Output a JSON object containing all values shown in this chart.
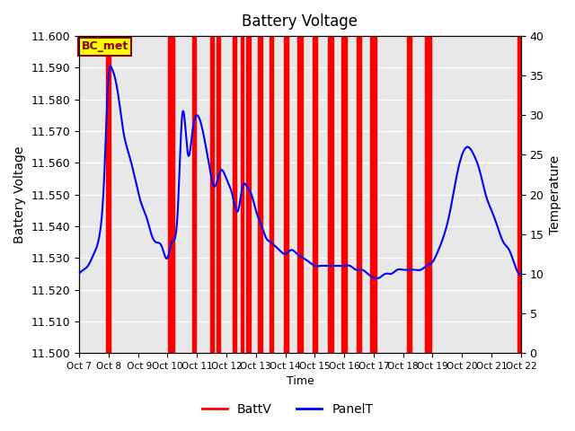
{
  "title": "Battery Voltage",
  "xlabel": "Time",
  "ylabel_left": "Battery Voltage",
  "ylabel_right": "Temperature",
  "ylim_left": [
    11.5,
    11.6
  ],
  "ylim_right": [
    0,
    40
  ],
  "xlim": [
    0,
    15
  ],
  "x_tick_labels": [
    "Oct 7",
    "Oct 8",
    " Oct 9",
    "Oct 10",
    "Oct 11",
    "Oct 12",
    "Oct 13",
    "Oct 14",
    "Oct 15",
    "Oct 16",
    "Oct 17",
    "Oct 18",
    "Oct 19",
    "Oct 20",
    "Oct 21",
    "Oct 22"
  ],
  "background_color": "#e8e8e8",
  "figure_background": "#ffffff",
  "annotation_text": "BC_met",
  "annotation_bg": "#ffff00",
  "annotation_border": "#8b0000",
  "red_spans": [
    [
      0.92,
      1.08
    ],
    [
      3.02,
      3.22
    ],
    [
      3.85,
      3.97
    ],
    [
      4.45,
      4.58
    ],
    [
      4.68,
      4.8
    ],
    [
      5.22,
      5.35
    ],
    [
      5.48,
      5.58
    ],
    [
      5.68,
      5.82
    ],
    [
      6.08,
      6.22
    ],
    [
      6.45,
      6.58
    ],
    [
      6.95,
      7.12
    ],
    [
      7.42,
      7.58
    ],
    [
      7.92,
      8.08
    ],
    [
      8.45,
      8.62
    ],
    [
      8.92,
      9.08
    ],
    [
      9.42,
      9.58
    ],
    [
      9.88,
      10.08
    ],
    [
      11.12,
      11.28
    ],
    [
      11.75,
      11.95
    ],
    [
      14.88,
      15.0
    ]
  ],
  "panel_t_x": [
    0.0,
    0.15,
    0.3,
    0.5,
    0.7,
    0.85,
    1.0,
    1.1,
    1.2,
    1.35,
    1.5,
    1.7,
    1.9,
    2.1,
    2.3,
    2.45,
    2.6,
    2.8,
    3.0,
    3.15,
    3.35,
    3.5,
    3.7,
    3.85,
    4.0,
    4.2,
    4.4,
    4.6,
    4.8,
    5.0,
    5.2,
    5.4,
    5.55,
    5.7,
    5.85,
    6.0,
    6.2,
    6.35,
    6.5,
    6.65,
    6.8,
    7.0,
    7.2,
    7.4,
    7.6,
    7.8,
    8.0,
    8.2,
    8.4,
    8.6,
    8.8,
    9.0,
    9.2,
    9.4,
    9.6,
    9.8,
    10.0,
    10.2,
    10.4,
    10.6,
    10.8,
    11.0,
    11.2,
    11.4,
    11.6,
    11.8,
    12.0,
    12.2,
    12.4,
    12.6,
    12.8,
    13.0,
    13.2,
    13.4,
    13.6,
    13.8,
    14.0,
    14.2,
    14.4,
    14.6,
    14.8,
    15.0
  ],
  "panel_t_y": [
    10,
    10.5,
    11,
    12.5,
    15,
    22,
    35,
    36,
    35,
    32,
    28,
    25,
    22,
    19,
    17,
    15,
    14,
    13.5,
    12,
    14,
    18,
    30,
    25,
    28,
    30,
    28,
    24,
    21,
    23,
    22,
    20,
    18,
    21,
    21,
    20,
    18,
    16,
    14.5,
    14,
    13.5,
    13,
    12.5,
    13,
    12.5,
    12,
    11.5,
    11,
    11,
    11,
    11,
    11,
    11,
    11,
    10.5,
    10.5,
    10,
    9.5,
    9.5,
    10,
    10,
    10.5,
    10.5,
    10.5,
    10.5,
    10.5,
    11,
    11.5,
    13,
    15,
    18,
    22,
    25,
    26,
    25,
    23,
    20,
    18,
    16,
    14,
    13,
    11,
    10
  ],
  "legend_battv_color": "#ff0000",
  "legend_panelt_color": "#0000ff"
}
